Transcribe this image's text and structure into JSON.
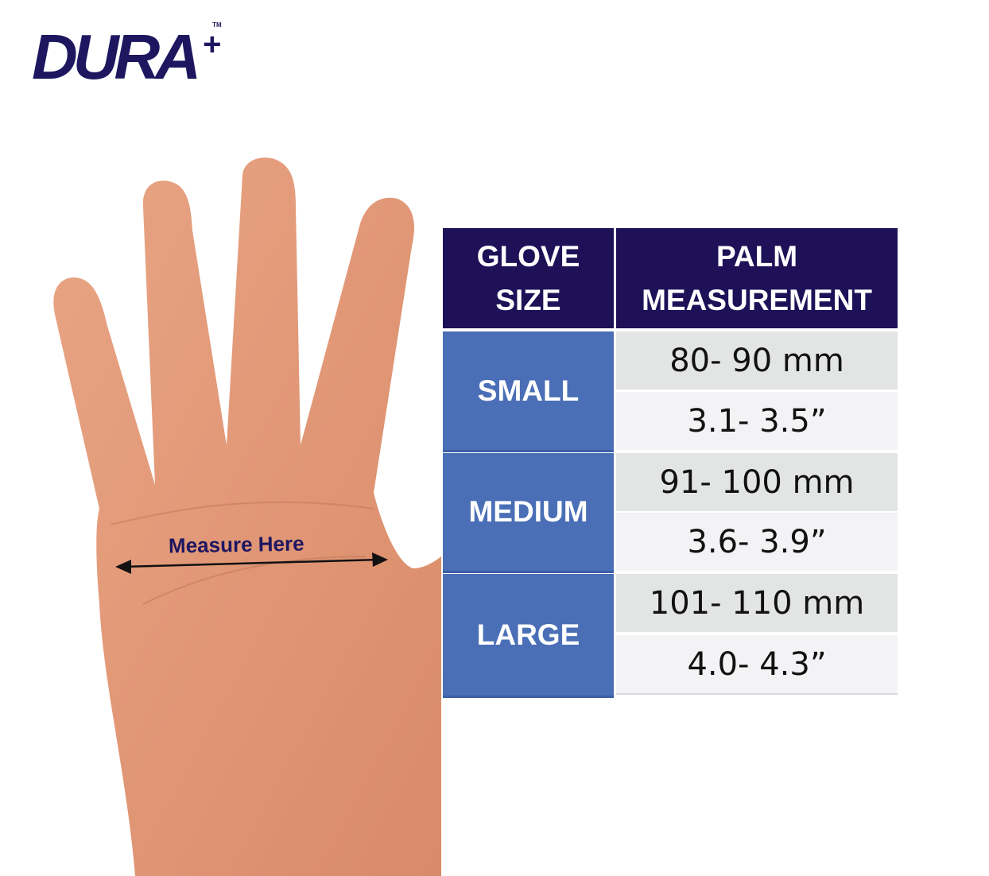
{
  "brand": {
    "logo_text": "DURA",
    "logo_plus": "+",
    "logo_tm": "TM",
    "color": "#1e1760"
  },
  "hand": {
    "label": "Measure Here"
  },
  "table": {
    "header": {
      "col1_line1": "GLOVE",
      "col1_line2": "SIZE",
      "col2_line1": "PALM",
      "col2_line2": "MEASUREMENT"
    },
    "rows": [
      {
        "size": "SMALL",
        "mm": "80- 90 mm",
        "inches": "3.1- 3.5”"
      },
      {
        "size": "MEDIUM",
        "mm": "91- 100 mm",
        "inches": "3.6- 3.9”"
      },
      {
        "size": "LARGE",
        "mm": "101- 110 mm",
        "inches": "4.0- 4.3”"
      }
    ],
    "colors": {
      "header": "#1e1158",
      "size_cell": "#4a6fb6",
      "row_light": "#e3e5e4",
      "row_lighter": "#f3f3f5"
    }
  }
}
